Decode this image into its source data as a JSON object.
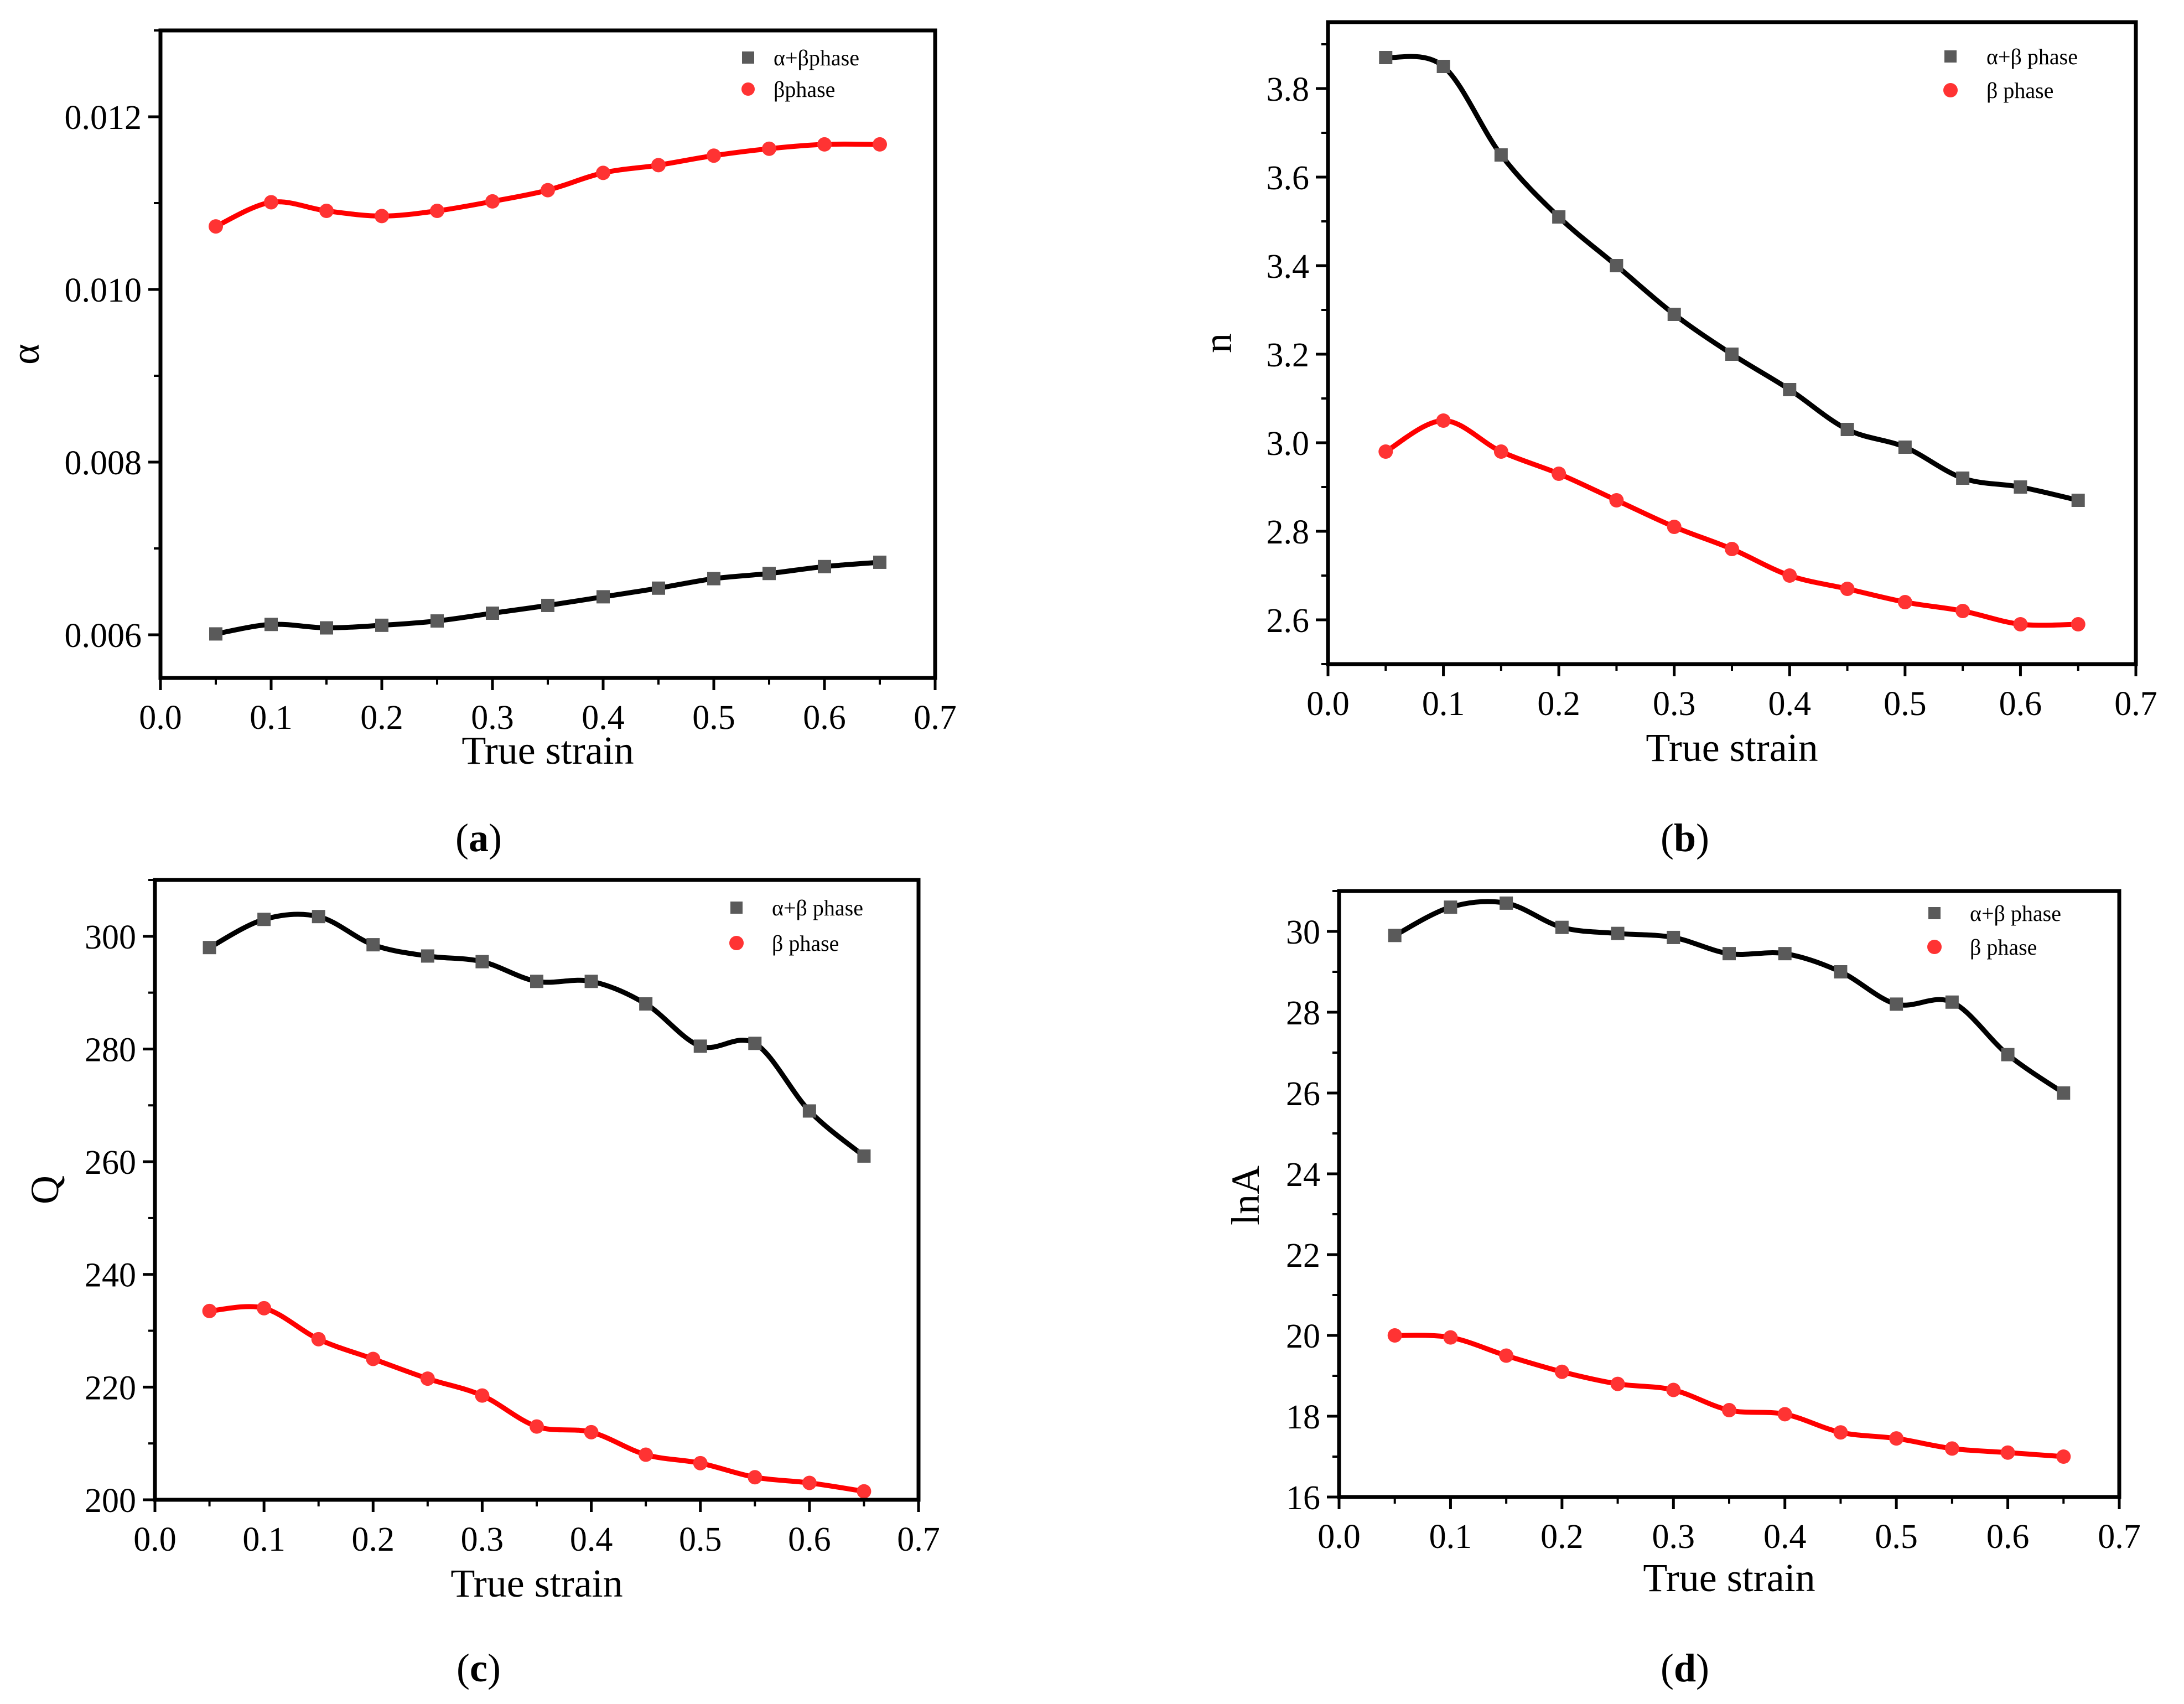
{
  "chart_data": [
    {
      "id": "a",
      "type": "scatter",
      "caption": "(a)",
      "caption_letter": "a",
      "xlabel": "True strain",
      "ylabel": "α",
      "xlim": [
        0.0,
        0.7
      ],
      "ylim": [
        0.0055,
        0.013
      ],
      "xticks": [
        0.0,
        0.1,
        0.2,
        0.3,
        0.4,
        0.5,
        0.6,
        0.7
      ],
      "xtick_labels": [
        "0.0",
        "0.1",
        "0.2",
        "0.3",
        "0.4",
        "0.5",
        "0.6",
        "0.7"
      ],
      "yticks": [
        0.006,
        0.008,
        0.01,
        0.012
      ],
      "ytick_labels": [
        "0.006",
        "0.008",
        "0.010",
        "0.012"
      ],
      "legend_position": "top-right",
      "series": [
        {
          "name": "α+βphase",
          "color": "#5a5a5a",
          "line_color": "#000000",
          "marker": "square",
          "x": [
            0.05,
            0.1,
            0.15,
            0.2,
            0.25,
            0.3,
            0.35,
            0.4,
            0.45,
            0.5,
            0.55,
            0.6,
            0.65
          ],
          "values": [
            0.00601,
            0.00612,
            0.00608,
            0.00611,
            0.00616,
            0.00625,
            0.00634,
            0.00644,
            0.00654,
            0.00665,
            0.00671,
            0.00679,
            0.00684
          ]
        },
        {
          "name": "βphase",
          "color": "#ff3333",
          "line_color": "#ff0000",
          "marker": "circle",
          "x": [
            0.05,
            0.1,
            0.15,
            0.2,
            0.25,
            0.3,
            0.35,
            0.4,
            0.45,
            0.5,
            0.55,
            0.6,
            0.65
          ],
          "values": [
            0.01073,
            0.01101,
            0.01091,
            0.01085,
            0.01091,
            0.01102,
            0.01115,
            0.01135,
            0.01144,
            0.01155,
            0.01163,
            0.01168,
            0.01168
          ]
        }
      ]
    },
    {
      "id": "b",
      "type": "scatter",
      "caption": "(b)",
      "caption_letter": "b",
      "xlabel": "True strain",
      "ylabel": "n",
      "xlim": [
        0.0,
        0.7
      ],
      "ylim": [
        2.5,
        3.95
      ],
      "xticks": [
        0.0,
        0.1,
        0.2,
        0.3,
        0.4,
        0.5,
        0.6,
        0.7
      ],
      "xtick_labels": [
        "0.0",
        "0.1",
        "0.2",
        "0.3",
        "0.4",
        "0.5",
        "0.6",
        "0.7"
      ],
      "yticks": [
        2.6,
        2.8,
        3.0,
        3.2,
        3.4,
        3.6,
        3.8
      ],
      "ytick_labels": [
        "2.6",
        "2.8",
        "3.0",
        "3.2",
        "3.4",
        "3.6",
        "3.8"
      ],
      "legend_position": "top-right",
      "series": [
        {
          "name": "α+β phase",
          "color": "#5a5a5a",
          "line_color": "#000000",
          "marker": "square",
          "x": [
            0.05,
            0.1,
            0.15,
            0.2,
            0.25,
            0.3,
            0.35,
            0.4,
            0.45,
            0.5,
            0.55,
            0.6,
            0.65
          ],
          "values": [
            3.87,
            3.85,
            3.65,
            3.51,
            3.4,
            3.29,
            3.2,
            3.12,
            3.03,
            2.99,
            2.92,
            2.9,
            2.87
          ]
        },
        {
          "name": "β phase",
          "color": "#ff3333",
          "line_color": "#ff0000",
          "marker": "circle",
          "x": [
            0.05,
            0.1,
            0.15,
            0.2,
            0.25,
            0.3,
            0.35,
            0.4,
            0.45,
            0.5,
            0.55,
            0.6,
            0.65
          ],
          "values": [
            2.98,
            3.05,
            2.98,
            2.93,
            2.87,
            2.81,
            2.76,
            2.7,
            2.67,
            2.64,
            2.62,
            2.59,
            2.59
          ]
        }
      ]
    },
    {
      "id": "c",
      "type": "scatter",
      "caption": "(c)",
      "caption_letter": "c",
      "xlabel": "True strain",
      "ylabel": "Q",
      "xlim": [
        0.0,
        0.7
      ],
      "ylim": [
        200,
        310
      ],
      "xticks": [
        0.0,
        0.1,
        0.2,
        0.3,
        0.4,
        0.5,
        0.6,
        0.7
      ],
      "xtick_labels": [
        "0.0",
        "0.1",
        "0.2",
        "0.3",
        "0.4",
        "0.5",
        "0.6",
        "0.7"
      ],
      "yticks": [
        200,
        220,
        240,
        260,
        280,
        300
      ],
      "ytick_labels": [
        "200",
        "220",
        "240",
        "260",
        "280",
        "300"
      ],
      "legend_position": "top-right",
      "series": [
        {
          "name": "α+β phase",
          "color": "#5a5a5a",
          "line_color": "#000000",
          "marker": "square",
          "x": [
            0.05,
            0.1,
            0.15,
            0.2,
            0.25,
            0.3,
            0.35,
            0.4,
            0.45,
            0.5,
            0.55,
            0.6,
            0.65
          ],
          "values": [
            298,
            303,
            303.5,
            298.5,
            296.5,
            295.5,
            292,
            292,
            288,
            280.5,
            281,
            269,
            261
          ]
        },
        {
          "name": "β phase",
          "color": "#ff3333",
          "line_color": "#ff0000",
          "marker": "circle",
          "x": [
            0.05,
            0.1,
            0.15,
            0.2,
            0.25,
            0.3,
            0.35,
            0.4,
            0.45,
            0.5,
            0.55,
            0.6,
            0.65
          ],
          "values": [
            233.5,
            234,
            228.5,
            225,
            221.5,
            218.5,
            213,
            212,
            208,
            206.5,
            204,
            203,
            201.5
          ]
        }
      ]
    },
    {
      "id": "d",
      "type": "scatter",
      "caption": "(d)",
      "caption_letter": "d",
      "xlabel": "True strain",
      "ylabel": "lnA",
      "xlim": [
        0.0,
        0.7
      ],
      "ylim": [
        16,
        31
      ],
      "xticks": [
        0.0,
        0.1,
        0.2,
        0.3,
        0.4,
        0.5,
        0.6,
        0.7
      ],
      "xtick_labels": [
        "0.0",
        "0.1",
        "0.2",
        "0.3",
        "0.4",
        "0.5",
        "0.6",
        "0.7"
      ],
      "yticks": [
        16,
        18,
        20,
        22,
        24,
        26,
        28,
        30
      ],
      "ytick_labels": [
        "16",
        "18",
        "20",
        "22",
        "24",
        "26",
        "28",
        "30"
      ],
      "legend_position": "top-right",
      "series": [
        {
          "name": "α+β phase",
          "color": "#5a5a5a",
          "line_color": "#000000",
          "marker": "square",
          "x": [
            0.05,
            0.1,
            0.15,
            0.2,
            0.25,
            0.3,
            0.35,
            0.4,
            0.45,
            0.5,
            0.55,
            0.6,
            0.65
          ],
          "values": [
            29.9,
            30.6,
            30.7,
            30.1,
            29.95,
            29.85,
            29.45,
            29.45,
            29.0,
            28.2,
            28.25,
            26.95,
            26.0
          ]
        },
        {
          "name": "β phase",
          "color": "#ff3333",
          "line_color": "#ff0000",
          "marker": "circle",
          "x": [
            0.05,
            0.1,
            0.15,
            0.2,
            0.25,
            0.3,
            0.35,
            0.4,
            0.45,
            0.5,
            0.55,
            0.6,
            0.65
          ],
          "values": [
            20.0,
            19.95,
            19.5,
            19.1,
            18.8,
            18.65,
            18.15,
            18.05,
            17.6,
            17.45,
            17.2,
            17.1,
            17.0
          ]
        }
      ]
    }
  ]
}
